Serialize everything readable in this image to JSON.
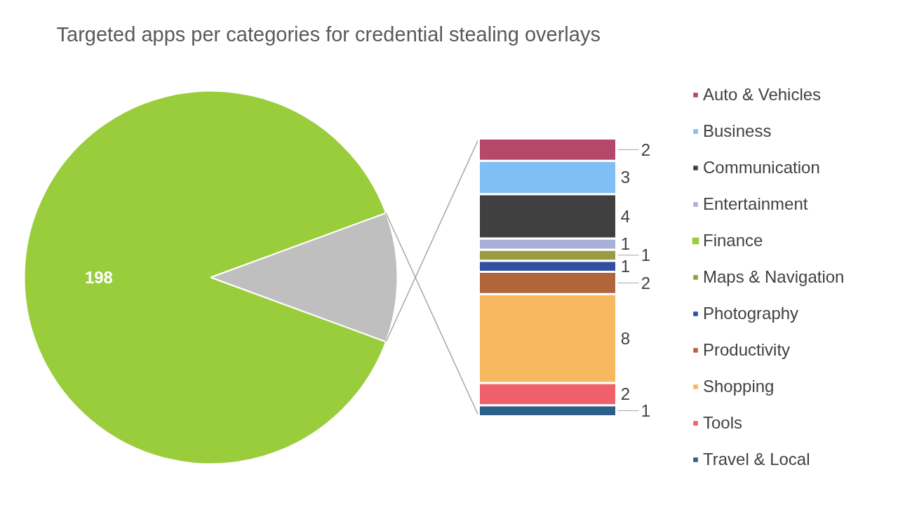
{
  "chart_data": [
    {
      "type": "pie",
      "title": "Targeted apps per categories for credential stealing overlays",
      "categories": [
        null,
        null
      ],
      "values": [
        198,
        25
      ],
      "colors": [
        "#9acd3c",
        "#bfbfbf"
      ],
      "value_labels": [
        "198",
        null
      ]
    },
    {
      "type": "bar",
      "stacked": true,
      "categories": [
        null
      ],
      "data_labels": true,
      "legend": "right",
      "series": [
        {
          "name": "Travel & Local",
          "color": "#2e5f8a",
          "values": [
            1
          ]
        },
        {
          "name": "Tools",
          "color": "#f0606a",
          "values": [
            2
          ]
        },
        {
          "name": "Shopping",
          "color": "#f7b860",
          "values": [
            8
          ]
        },
        {
          "name": "Productivity",
          "color": "#b0653a",
          "values": [
            2
          ]
        },
        {
          "name": "Photography",
          "color": "#2f4fa0",
          "values": [
            1
          ]
        },
        {
          "name": "Maps & Navigation",
          "color": "#9a9a45",
          "values": [
            1
          ]
        },
        {
          "name": "Finance",
          "color": "#9acd3c",
          "values": [
            null
          ]
        },
        {
          "name": "Entertainment",
          "color": "#a8b0d8",
          "values": [
            1
          ]
        },
        {
          "name": "Communication",
          "color": "#404040",
          "values": [
            4
          ]
        },
        {
          "name": "Business",
          "color": "#7fbff5",
          "values": [
            3
          ]
        },
        {
          "name": "Auto & Vehicles",
          "color": "#b5476b",
          "values": [
            2
          ]
        }
      ]
    }
  ]
}
